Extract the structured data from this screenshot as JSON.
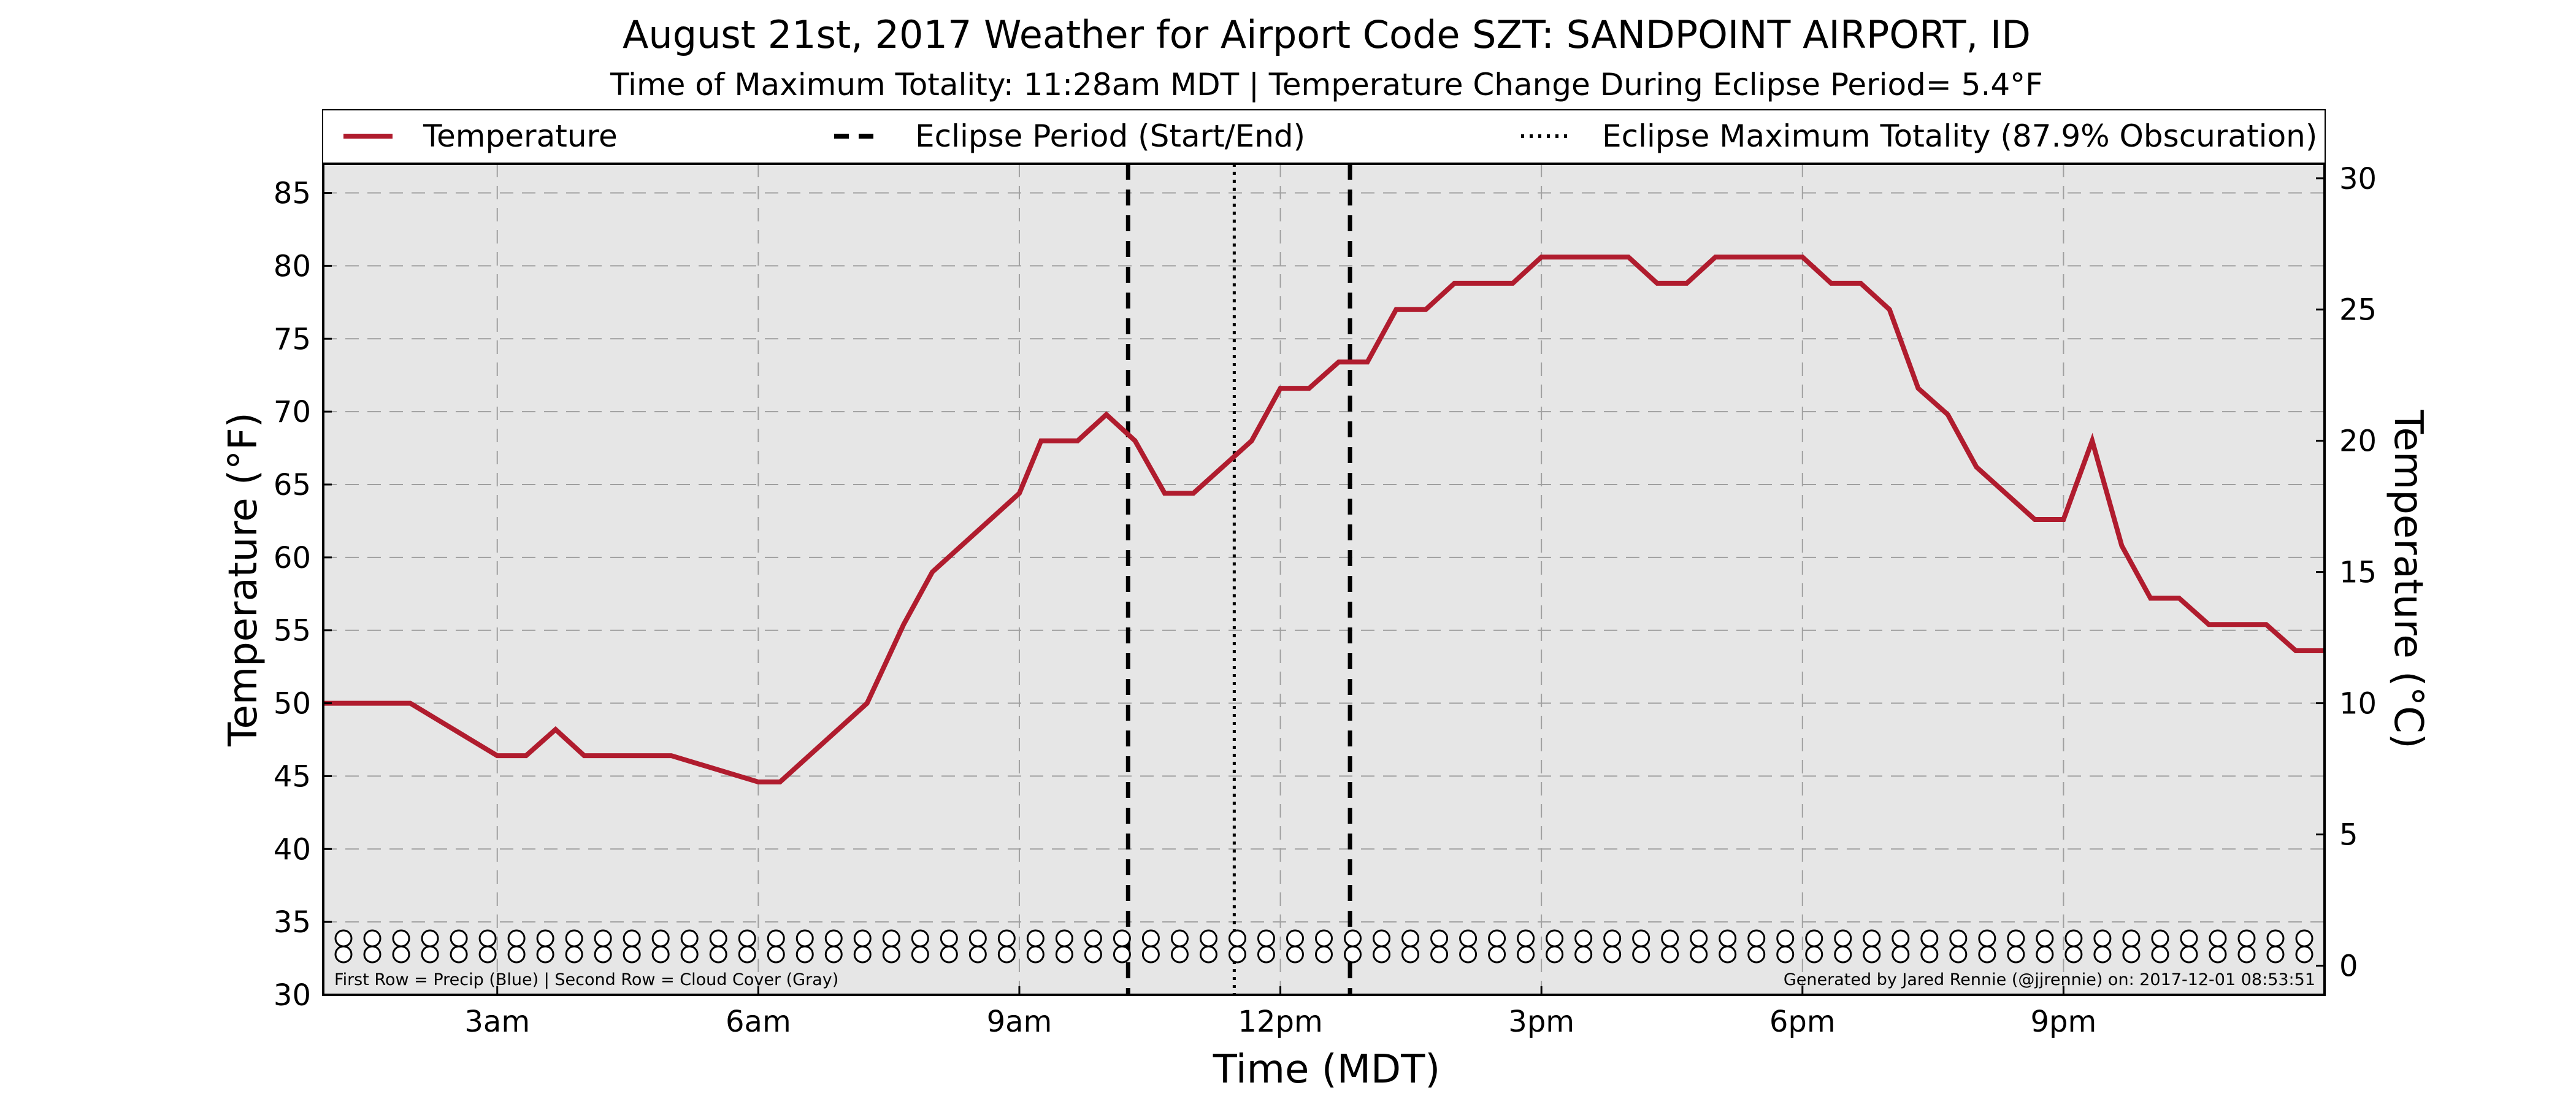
{
  "chart_data": {
    "type": "line",
    "title": "August 21st, 2017 Weather for Airport Code SZT: SANDPOINT AIRPORT, ID",
    "subtitle": "Time of Maximum Totality: 11:28am MDT | Temperature Change During Eclipse Period= 5.4°F",
    "xlabel": "Time (MDT)",
    "ylabel": "Temperature (°F)",
    "ylabel_right": "Temperature (°C)",
    "x_unit": "hours after midnight (MDT)",
    "xlim": [
      1.0,
      24.0
    ],
    "ylim": [
      30,
      87
    ],
    "ylim_right_c": [
      -1.11,
      30.56
    ],
    "x_ticks": [
      {
        "x": 3,
        "label": "3am"
      },
      {
        "x": 6,
        "label": "6am"
      },
      {
        "x": 9,
        "label": "9am"
      },
      {
        "x": 12,
        "label": "12pm"
      },
      {
        "x": 15,
        "label": "3pm"
      },
      {
        "x": 18,
        "label": "6pm"
      },
      {
        "x": 21,
        "label": "9pm"
      }
    ],
    "y_ticks": [
      30,
      35,
      40,
      45,
      50,
      55,
      60,
      65,
      70,
      75,
      80,
      85
    ],
    "y_ticks_right": [
      0,
      5,
      10,
      15,
      20,
      25,
      30
    ],
    "grid": true,
    "legend": {
      "placement": "top",
      "entries": [
        {
          "label": "Temperature",
          "style": "solid",
          "color": "#b01c2e"
        },
        {
          "label": "Eclipse Period (Start/End)",
          "style": "dashed",
          "color": "#000000"
        },
        {
          "label": "Eclipse Maximum Totality (87.9% Obscuration)",
          "style": "dotted",
          "color": "#000000"
        }
      ]
    },
    "series": [
      {
        "name": "Temperature",
        "color": "#b01c2e",
        "points": [
          [
            1.0,
            50.0
          ],
          [
            2.0,
            50.0
          ],
          [
            3.0,
            46.4
          ],
          [
            3.33,
            46.4
          ],
          [
            3.67,
            48.2
          ],
          [
            4.0,
            46.4
          ],
          [
            5.0,
            46.4
          ],
          [
            6.0,
            44.6
          ],
          [
            6.25,
            44.6
          ],
          [
            7.25,
            50.0
          ],
          [
            7.67,
            55.4
          ],
          [
            8.0,
            59.0
          ],
          [
            9.0,
            64.4
          ],
          [
            9.25,
            68.0
          ],
          [
            9.67,
            68.0
          ],
          [
            10.0,
            69.8
          ],
          [
            10.33,
            68.0
          ],
          [
            10.67,
            64.4
          ],
          [
            11.0,
            64.4
          ],
          [
            11.67,
            68.0
          ],
          [
            12.0,
            71.6
          ],
          [
            12.33,
            71.6
          ],
          [
            12.67,
            73.4
          ],
          [
            13.0,
            73.4
          ],
          [
            13.33,
            77.0
          ],
          [
            13.67,
            77.0
          ],
          [
            14.0,
            78.8
          ],
          [
            14.67,
            78.8
          ],
          [
            15.0,
            80.6
          ],
          [
            16.0,
            80.6
          ],
          [
            16.33,
            78.8
          ],
          [
            16.67,
            78.8
          ],
          [
            17.0,
            80.6
          ],
          [
            18.0,
            80.6
          ],
          [
            18.33,
            78.8
          ],
          [
            18.67,
            78.8
          ],
          [
            19.0,
            77.0
          ],
          [
            19.33,
            71.6
          ],
          [
            19.67,
            69.8
          ],
          [
            20.0,
            66.2
          ],
          [
            20.67,
            62.6
          ],
          [
            21.0,
            62.6
          ],
          [
            21.33,
            68.0
          ],
          [
            21.67,
            60.8
          ],
          [
            22.0,
            57.2
          ],
          [
            22.33,
            57.2
          ],
          [
            22.67,
            55.4
          ],
          [
            23.33,
            55.4
          ],
          [
            23.67,
            53.6
          ],
          [
            24.0,
            53.6
          ]
        ]
      }
    ],
    "eclipse_start": 10.25,
    "eclipse_end": 12.8,
    "eclipse_max": 11.47,
    "precip_cloud_rows": {
      "count": 69,
      "precip_color": "#ffffff",
      "cloud_color": "#ffffff"
    },
    "annotation_left": "First Row = Precip (Blue) | Second Row = Cloud Cover (Gray)",
    "annotation_right": "Generated by Jared Rennie (@jjrennie) on: 2017-12-01 08:53:51",
    "colors": {
      "plot_background": "#e6e6e6",
      "temperature": "#b01c2e"
    }
  }
}
